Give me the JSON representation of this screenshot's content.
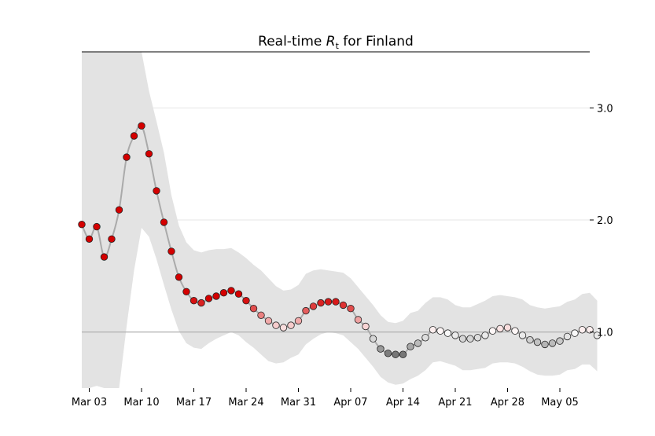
{
  "chart_data": {
    "type": "scatter",
    "title_prefix": "Real-time ",
    "title_symbol": "R",
    "title_subscript": "t",
    "title_suffix": " for Finland",
    "xlabel": "",
    "ylabel": "",
    "x_start_date": "2020-03-02",
    "x_end_date": "2020-05-09",
    "ylim": [
      0.5,
      3.5
    ],
    "y_ticks": [
      {
        "value": 1.0,
        "label": "1.0"
      },
      {
        "value": 2.0,
        "label": "2.0"
      },
      {
        "value": 3.0,
        "label": "3.0"
      }
    ],
    "x_ticks": [
      {
        "date": "2020-03-03",
        "label": "Mar 03"
      },
      {
        "date": "2020-03-10",
        "label": "Mar 10"
      },
      {
        "date": "2020-03-17",
        "label": "Mar 17"
      },
      {
        "date": "2020-03-24",
        "label": "Mar 24"
      },
      {
        "date": "2020-03-31",
        "label": "Mar 31"
      },
      {
        "date": "2020-04-07",
        "label": "Apr 07"
      },
      {
        "date": "2020-04-14",
        "label": "Apr 14"
      },
      {
        "date": "2020-04-21",
        "label": "Apr 21"
      },
      {
        "date": "2020-04-28",
        "label": "Apr 28"
      },
      {
        "date": "2020-05-05",
        "label": "May 05"
      }
    ],
    "reference_line": 1.0,
    "grid": true,
    "y_axis_side": "right",
    "colors": {
      "band": "#e3e3e3",
      "line": "#aaaaaa",
      "grid": "#e6e6e6",
      "reference": "#aaaaaa",
      "high": "#d40000",
      "mid": "#ffffff",
      "low": "#555555",
      "marker_edge": "#222222"
    },
    "values": [
      1.96,
      1.83,
      1.94,
      1.67,
      1.83,
      2.09,
      2.56,
      2.75,
      2.84,
      2.59,
      2.26,
      1.98,
      1.72,
      1.49,
      1.36,
      1.28,
      1.26,
      1.3,
      1.32,
      1.35,
      1.37,
      1.34,
      1.28,
      1.21,
      1.15,
      1.1,
      1.06,
      1.04,
      1.06,
      1.1,
      1.19,
      1.23,
      1.26,
      1.27,
      1.27,
      1.24,
      1.21,
      1.11,
      1.05,
      0.94,
      0.85,
      0.81,
      0.8,
      0.8,
      0.87,
      0.9,
      0.95,
      1.02,
      1.01,
      0.99,
      0.97,
      0.94,
      0.94,
      0.95,
      0.97,
      1.01,
      1.03,
      1.04,
      1.01,
      0.97,
      0.93,
      0.91,
      0.89,
      0.9,
      0.92,
      0.96,
      0.99,
      1.02,
      1.02,
      0.97
    ],
    "upper": [
      3.5,
      3.5,
      3.5,
      3.5,
      3.5,
      3.5,
      3.5,
      3.5,
      3.5,
      3.15,
      2.88,
      2.6,
      2.22,
      1.95,
      1.8,
      1.73,
      1.71,
      1.73,
      1.74,
      1.74,
      1.75,
      1.71,
      1.66,
      1.6,
      1.55,
      1.48,
      1.41,
      1.37,
      1.38,
      1.42,
      1.52,
      1.55,
      1.56,
      1.55,
      1.54,
      1.53,
      1.48,
      1.4,
      1.32,
      1.24,
      1.15,
      1.09,
      1.08,
      1.1,
      1.17,
      1.19,
      1.26,
      1.31,
      1.31,
      1.29,
      1.24,
      1.22,
      1.22,
      1.25,
      1.28,
      1.32,
      1.33,
      1.32,
      1.31,
      1.29,
      1.24,
      1.22,
      1.21,
      1.22,
      1.23,
      1.27,
      1.29,
      1.34,
      1.35,
      1.28
    ],
    "lower": [
      0.5,
      0.5,
      0.52,
      0.5,
      0.5,
      0.5,
      1.05,
      1.55,
      1.93,
      1.85,
      1.65,
      1.42,
      1.2,
      1.01,
      0.9,
      0.86,
      0.85,
      0.9,
      0.94,
      0.97,
      1.0,
      0.97,
      0.91,
      0.86,
      0.8,
      0.74,
      0.72,
      0.73,
      0.77,
      0.8,
      0.89,
      0.94,
      0.98,
      1.0,
      0.99,
      0.97,
      0.91,
      0.85,
      0.77,
      0.69,
      0.6,
      0.55,
      0.53,
      0.54,
      0.58,
      0.61,
      0.66,
      0.73,
      0.74,
      0.72,
      0.7,
      0.66,
      0.66,
      0.67,
      0.68,
      0.72,
      0.73,
      0.73,
      0.72,
      0.69,
      0.65,
      0.62,
      0.61,
      0.61,
      0.62,
      0.66,
      0.67,
      0.71,
      0.71,
      0.65
    ]
  }
}
